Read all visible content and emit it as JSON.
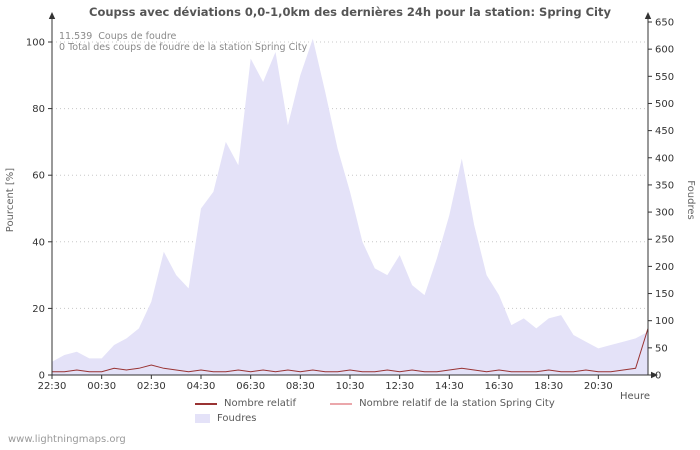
{
  "watermark": "www.lightningmaps.org",
  "chart_data": {
    "type": "area",
    "title": "Coupss avec déviations 0,0-1,0km des dernières 24h pour la station: Spring City",
    "xlabel": "Heure",
    "ylabel_left": "Pourcent   [%]",
    "ylabel_right": "Foudres",
    "annotations": [
      "11.539  Coups de foudre",
      "0 Total des coups de foudre de la station Spring City"
    ],
    "x_start": "22:30",
    "point_interval_minutes": 30,
    "x_ticks": [
      "22:30",
      "00:30",
      "02:30",
      "04:30",
      "06:30",
      "08:30",
      "10:30",
      "12:30",
      "14:30",
      "16:30",
      "18:30",
      "20:30"
    ],
    "x_tick_interval_hours": 2,
    "left_ticks": [
      "0",
      "20",
      "40",
      "60",
      "80",
      "100"
    ],
    "right_ticks": [
      "0",
      "50",
      "100",
      "150",
      "200",
      "250",
      "300",
      "350",
      "400",
      "450",
      "500",
      "550",
      "600",
      "650"
    ],
    "ylim_left": [
      0,
      100
    ],
    "ylim_right": [
      0,
      650
    ],
    "grid": "horizontal-dotted",
    "legend_position": "bottom",
    "legend": [
      {
        "label": "Nombre relatif",
        "color": "#993333",
        "swatch": "line"
      },
      {
        "label": "Nombre relatif de la station Spring City",
        "color": "#eba7ab",
        "swatch": "line"
      },
      {
        "label": "Foudres",
        "color": "#e4e2f8",
        "swatch": "area"
      }
    ],
    "series": [
      {
        "name": "Foudres",
        "type": "area",
        "color": "#e4e2f8",
        "axis": "left-percent",
        "values": [
          4,
          6,
          7,
          5,
          5,
          9,
          11,
          14,
          22,
          37,
          30,
          26,
          50,
          55,
          70,
          63,
          95,
          88,
          97,
          75,
          90,
          101,
          85,
          68,
          55,
          40,
          32,
          30,
          36,
          27,
          24,
          35,
          48,
          65,
          45,
          30,
          24,
          15,
          17,
          14,
          17,
          18,
          12,
          10,
          8,
          9,
          10,
          11,
          13
        ]
      },
      {
        "name": "Nombre relatif de la station Spring City",
        "type": "line",
        "color": "#eba7ab",
        "axis": "left-percent",
        "values": [
          0,
          0,
          0,
          0,
          0,
          0,
          0,
          0,
          0,
          0,
          0,
          0,
          0,
          0,
          0,
          0,
          0,
          0,
          0,
          0,
          0,
          0,
          0,
          0,
          0,
          0,
          0,
          0,
          0,
          0,
          0,
          0,
          0,
          0,
          0,
          0,
          0,
          0,
          0,
          0,
          0,
          0,
          0,
          0,
          0,
          0,
          0,
          0,
          0
        ]
      },
      {
        "name": "Nombre relatif",
        "type": "line",
        "color": "#993333",
        "axis": "left-percent",
        "values": [
          1,
          1,
          1.5,
          1,
          1,
          2,
          1.5,
          2,
          3,
          2,
          1.5,
          1,
          1.5,
          1,
          1,
          1.5,
          1,
          1.5,
          1,
          1.5,
          1,
          1.5,
          1,
          1,
          1.5,
          1,
          1,
          1.5,
          1,
          1.5,
          1,
          1,
          1.5,
          2,
          1.5,
          1,
          1.5,
          1,
          1,
          1,
          1.5,
          1,
          1,
          1.5,
          1,
          1,
          1.5,
          2,
          14
        ]
      }
    ]
  }
}
